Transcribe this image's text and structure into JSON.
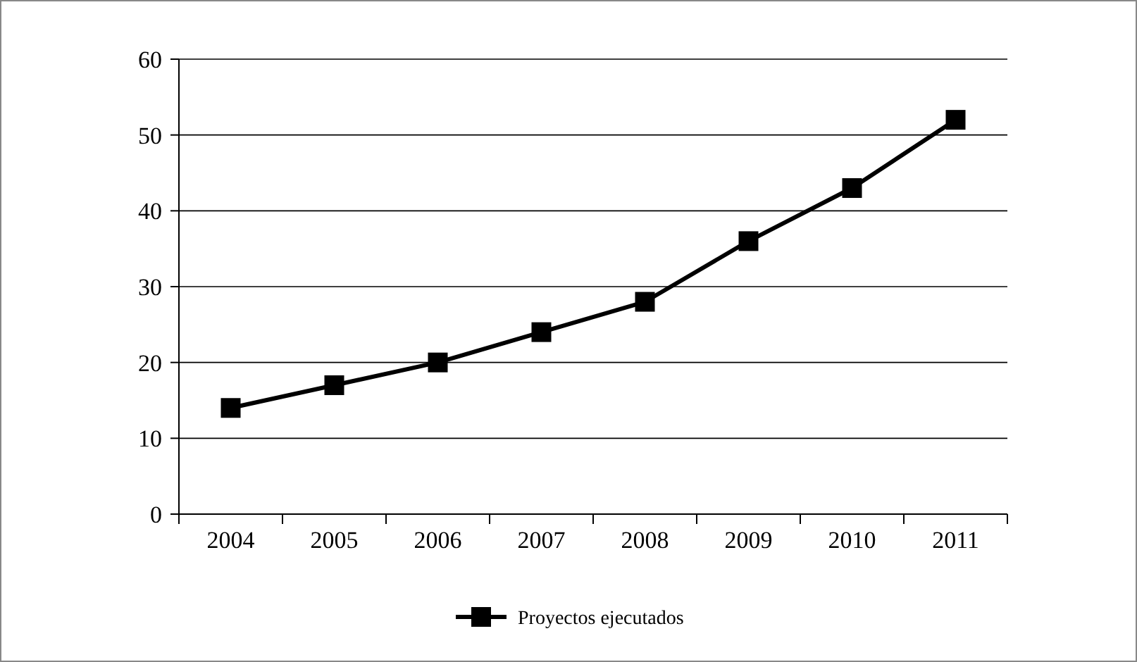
{
  "chart_data": {
    "type": "line",
    "categories": [
      "2004",
      "2005",
      "2006",
      "2007",
      "2008",
      "2009",
      "2010",
      "2011"
    ],
    "series": [
      {
        "name": "Proyectos ejecutados",
        "color": "#000000",
        "values": [
          14,
          17,
          20,
          24,
          28,
          36,
          43,
          52
        ]
      }
    ],
    "ylim": [
      0,
      60
    ],
    "yticks": [
      0,
      10,
      20,
      30,
      40,
      50,
      60
    ],
    "grid": "y",
    "legend": "bottom",
    "marker": "square",
    "line_style": "solid"
  }
}
